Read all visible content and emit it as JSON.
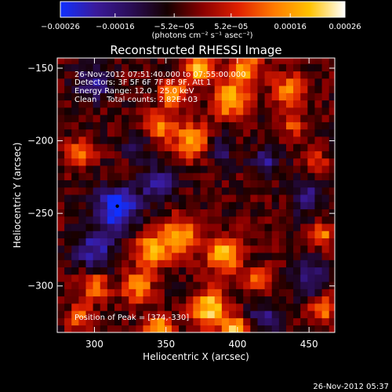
{
  "colorbar": {
    "tick_labels": [
      "−0.00026",
      "−0.00016",
      "−5.2e−05",
      "5.2e−05",
      "0.00016",
      "0.00026"
    ],
    "tick_values": [
      -0.00026,
      -0.00016,
      -5.2e-05,
      5.2e-05,
      0.00016,
      0.00026
    ],
    "range": [
      -0.00026,
      0.00026
    ],
    "unit_label": "(photons cm⁻² s⁻¹ asec⁻²)",
    "colors": [
      "#1030ff",
      "#3a1a9a",
      "#2a0d55",
      "#150000",
      "#8a0000",
      "#e02000",
      "#ff7a00",
      "#ffc200",
      "#ffffff"
    ]
  },
  "chart_data": {
    "type": "heatmap",
    "title": "Reconstructed RHESSI Image",
    "xlabel": "Heliocentric X (arcsec)",
    "ylabel": "Heliocentric Y (arcsec)",
    "xlim": [
      274,
      468
    ],
    "ylim": [
      -332,
      -143
    ],
    "x_ticks": [
      300,
      350,
      400,
      450
    ],
    "x_tick_labels": [
      "300",
      "350",
      "400",
      "450"
    ],
    "y_ticks": [
      -300,
      -250,
      -200,
      -150
    ],
    "y_tick_labels": [
      "−300",
      "−250",
      "−200",
      "−150"
    ],
    "annotations": [
      "26-Nov-2012 07:51:40.000 to 07:55:00.000",
      "Detectors: 3F 5F 6F 7F 8F 9F, Att 1",
      "Energy Range: 12.0 - 25.0 keV",
      "Clean    Total counts: 2.82E+03"
    ],
    "peak_label": "Position of Peak = [374,-330]",
    "peak": [
      374,
      -330
    ],
    "sources": [
      {
        "x": 316,
        "y": -246,
        "w": 14,
        "v": -1.0
      },
      {
        "x": 300,
        "y": -275,
        "w": 14,
        "v": -0.6
      },
      {
        "x": 300,
        "y": -160,
        "w": 12,
        "v": -0.5
      },
      {
        "x": 345,
        "y": -230,
        "w": 12,
        "v": -0.6
      },
      {
        "x": 448,
        "y": -240,
        "w": 10,
        "v": -0.6
      },
      {
        "x": 452,
        "y": -295,
        "w": 12,
        "v": -0.5
      },
      {
        "x": 420,
        "y": -215,
        "w": 10,
        "v": -0.5
      },
      {
        "x": 420,
        "y": -322,
        "w": 12,
        "v": -0.5
      },
      {
        "x": 388,
        "y": -205,
        "w": 10,
        "v": -0.4
      },
      {
        "x": 330,
        "y": -200,
        "w": 12,
        "v": -0.3
      },
      {
        "x": 372,
        "y": -150,
        "w": 10,
        "v": 0.9
      },
      {
        "x": 405,
        "y": -150,
        "w": 12,
        "v": 0.8
      },
      {
        "x": 395,
        "y": -172,
        "w": 12,
        "v": 0.85
      },
      {
        "x": 355,
        "y": -168,
        "w": 10,
        "v": 0.7
      },
      {
        "x": 437,
        "y": -165,
        "w": 10,
        "v": 0.8
      },
      {
        "x": 345,
        "y": -190,
        "w": 10,
        "v": 0.7
      },
      {
        "x": 368,
        "y": -200,
        "w": 12,
        "v": 0.8
      },
      {
        "x": 290,
        "y": -208,
        "w": 9,
        "v": 0.7
      },
      {
        "x": 340,
        "y": -275,
        "w": 12,
        "v": 0.8
      },
      {
        "x": 360,
        "y": -265,
        "w": 12,
        "v": 0.85
      },
      {
        "x": 390,
        "y": -278,
        "w": 12,
        "v": 0.9
      },
      {
        "x": 380,
        "y": -315,
        "w": 12,
        "v": 1.0
      },
      {
        "x": 398,
        "y": -330,
        "w": 10,
        "v": 0.85
      },
      {
        "x": 345,
        "y": -330,
        "w": 10,
        "v": 0.85
      },
      {
        "x": 300,
        "y": -300,
        "w": 10,
        "v": 0.65
      },
      {
        "x": 290,
        "y": -322,
        "w": 9,
        "v": 0.55
      },
      {
        "x": 460,
        "y": -315,
        "w": 9,
        "v": 0.7
      },
      {
        "x": 460,
        "y": -265,
        "w": 8,
        "v": 0.6
      },
      {
        "x": 330,
        "y": -300,
        "w": 10,
        "v": 0.75
      },
      {
        "x": 415,
        "y": -295,
        "w": 8,
        "v": 0.6
      },
      {
        "x": 440,
        "y": -190,
        "w": 8,
        "v": 0.5
      },
      {
        "x": 455,
        "y": -215,
        "w": 8,
        "v": 0.45
      }
    ]
  },
  "timestamp": "26-Nov-2012 05:37"
}
